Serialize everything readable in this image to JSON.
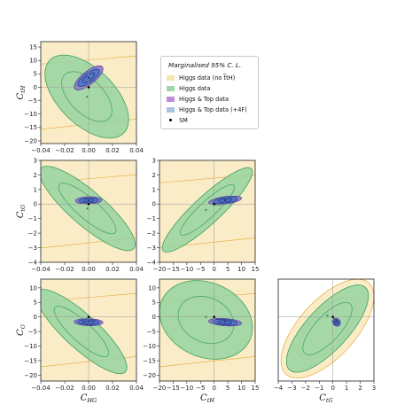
{
  "legend": {
    "title": "Marginalised 95% C. L.",
    "items": [
      {
        "label": "Higgs data (no t̅tH)",
        "color": "#f7e3b5"
      },
      {
        "label": "Higgs data",
        "color": "#9fd9a8"
      },
      {
        "label": "Higgs & Top data",
        "color": "#b98fd6"
      },
      {
        "label": "Higgs & Top data (+4F)",
        "color": "#a9c3e8"
      },
      {
        "label": "SM",
        "color": "#000000"
      }
    ]
  },
  "colors": {
    "no_tth_fill": "#fbecc8",
    "no_tth_edge": "#e8b24a",
    "higgs_fill": "#96d4a0",
    "higgs_edge": "#3aa35a",
    "top_fill": "#8a72cc",
    "top_edge": "#4a3c9a",
    "top4f_fill": "#4f73c8",
    "top4f_edge": "#1e3a8a"
  },
  "chart_data": [
    {
      "type": "contour",
      "panel": "C_tH vs C_HG",
      "xlabel": "C_HG",
      "ylabel": "C_tH",
      "xlim": [
        -0.04,
        0.04
      ],
      "ylim": [
        -21,
        17
      ],
      "xticks": [
        -0.04,
        -0.02,
        0.0,
        0.02,
        0.04
      ],
      "yticks": [
        -20,
        -15,
        -10,
        -5,
        0,
        5,
        10,
        15
      ],
      "xticklabels": [
        "−0.04",
        "−0.02",
        "0.00",
        "0.02",
        "0.04"
      ],
      "yticklabels": [
        "−20",
        "−15",
        "−10",
        "−5",
        "0",
        "5",
        "10",
        "15"
      ],
      "show_xticklabels": true,
      "sm": [
        0,
        0
      ],
      "best_fit": {
        "higgs": [
          -0.0015,
          -3.5
        ],
        "top": [
          0.0,
          3.5
        ]
      },
      "regions": {
        "no_tth": {
          "band": true
        },
        "higgs": {
          "center": [
            -0.0015,
            -3.5
          ],
          "rx": 0.035,
          "ry": 15.5,
          "corr": -0.55
        },
        "top": {
          "center": [
            0.0,
            3.5
          ],
          "rx": 0.012,
          "ry": 4.5,
          "corr": 0.75
        },
        "top4f": {
          "center": [
            0.0,
            3.5
          ],
          "rx": 0.009,
          "ry": 3.2,
          "corr": 0.75
        }
      }
    },
    {
      "type": "contour",
      "panel": "C_tG vs C_HG",
      "xlabel": "C_HG",
      "ylabel": "C_tG",
      "xlim": [
        -0.04,
        0.04
      ],
      "ylim": [
        -4,
        3
      ],
      "xticks": [
        -0.04,
        -0.02,
        0.0,
        0.02,
        0.04
      ],
      "yticks": [
        -4,
        -3,
        -2,
        -1,
        0,
        1,
        2,
        3
      ],
      "xticklabels": [
        "−0.04",
        "−0.02",
        "0.00",
        "0.02",
        "0.04"
      ],
      "yticklabels": [
        "−4",
        "−3",
        "−2",
        "−1",
        "0",
        "1",
        "2",
        "3"
      ],
      "show_xticklabels": true,
      "sm": [
        0,
        0
      ],
      "best_fit": {
        "higgs": [
          -0.001,
          -0.3
        ],
        "top": [
          0.0,
          0.25
        ]
      },
      "regions": {
        "no_tth": {
          "band": true
        },
        "higgs": {
          "center": [
            -0.001,
            -0.3
          ],
          "rx": 0.04,
          "ry": 2.9,
          "corr": -0.85
        },
        "top": {
          "center": [
            0.0,
            0.25
          ],
          "rx": 0.011,
          "ry": 0.25,
          "corr": 0.1
        },
        "top4f": {
          "center": [
            0.0,
            0.25
          ],
          "rx": 0.008,
          "ry": 0.18,
          "corr": 0.1
        }
      }
    },
    {
      "type": "contour",
      "panel": "C_tG vs C_tH",
      "xlabel": "C_tH",
      "ylabel": "C_tG",
      "xlim": [
        -20,
        15
      ],
      "ylim": [
        -4,
        3
      ],
      "xticks": [
        -20,
        -15,
        -10,
        -5,
        0,
        5,
        10,
        15
      ],
      "yticks": [
        -4,
        -3,
        -2,
        -1,
        0,
        1,
        2,
        3
      ],
      "xticklabels": [
        "−20",
        "−15",
        "−10",
        "−5",
        "0",
        "5",
        "10",
        "15"
      ],
      "yticklabels": [
        "−4",
        "−3",
        "−2",
        "−1",
        "0",
        "1",
        "2",
        "3"
      ],
      "show_xticklabels": true,
      "sm": [
        0,
        0
      ],
      "best_fit": {
        "higgs": [
          -3.0,
          -0.4
        ],
        "top": [
          4.0,
          0.25
        ]
      },
      "regions": {
        "no_tth": {
          "band": true
        },
        "higgs": {
          "center": [
            -2.5,
            -0.4
          ],
          "rx": 16.5,
          "ry": 2.9,
          "corr": 0.9
        },
        "top": {
          "center": [
            4.0,
            0.25
          ],
          "rx": 6.0,
          "ry": 0.3,
          "corr": 0.5
        },
        "top4f": {
          "center": [
            4.0,
            0.25
          ],
          "rx": 4.5,
          "ry": 0.22,
          "corr": 0.5
        }
      }
    },
    {
      "type": "contour",
      "panel": "C_G vs C_HG",
      "xlabel": "C_HG",
      "ylabel": "C_G",
      "xlim": [
        -0.04,
        0.04
      ],
      "ylim": [
        -22,
        13
      ],
      "xticks": [
        -0.04,
        -0.02,
        0.0,
        0.02,
        0.04
      ],
      "yticks": [
        -20,
        -15,
        -10,
        -5,
        0,
        5,
        10
      ],
      "xticklabels": [
        "−0.04",
        "−0.02",
        "0.00",
        "0.02",
        "0.04"
      ],
      "yticklabels": [
        "−20",
        "−15",
        "−10",
        "−5",
        "0",
        "5",
        "10"
      ],
      "show_xticklabels": true,
      "sm": [
        0,
        0
      ],
      "best_fit": {
        "higgs": [
          0.0,
          0.0
        ],
        "top": [
          0.0,
          -1.5
        ]
      },
      "regions": {
        "no_tth": {
          "band": true
        },
        "higgs": {
          "center": [
            -0.006,
            -5.0
          ],
          "rx": 0.038,
          "ry": 14.5,
          "corr": -0.85
        },
        "top": {
          "center": [
            0.0,
            -1.8
          ],
          "rx": 0.012,
          "ry": 1.2,
          "corr": -0.1
        },
        "top4f": {
          "center": [
            0.0,
            -1.8
          ],
          "rx": 0.009,
          "ry": 0.9,
          "corr": -0.1
        }
      }
    },
    {
      "type": "contour",
      "panel": "C_G vs C_tH",
      "xlabel": "C_tH",
      "ylabel": "C_G",
      "xlim": [
        -20,
        15
      ],
      "ylim": [
        -22,
        13
      ],
      "xticks": [
        -20,
        -15,
        -10,
        -5,
        0,
        5,
        10,
        15
      ],
      "yticks": [
        -20,
        -15,
        -10,
        -5,
        0,
        5,
        10
      ],
      "xticklabels": [
        "−20",
        "−15",
        "−10",
        "−5",
        "0",
        "5",
        "10",
        "15"
      ],
      "yticklabels": [
        "−20",
        "−15",
        "−10",
        "−5",
        "0",
        "5",
        "10"
      ],
      "show_xticklabels": true,
      "sm": [
        0,
        0
      ],
      "best_fit": {
        "higgs": [
          -3.0,
          0.0
        ],
        "top": [
          4.0,
          -1.5
        ]
      },
      "regions": {
        "no_tth": {
          "band": true
        },
        "higgs": {
          "center": [
            -3.0,
            -1.0
          ],
          "rx": 17.0,
          "ry": 13.5,
          "corr": -0.2
        },
        "top": {
          "center": [
            4.0,
            -1.8
          ],
          "rx": 6.0,
          "ry": 1.3,
          "corr": -0.3
        },
        "top4f": {
          "center": [
            4.0,
            -1.8
          ],
          "rx": 4.5,
          "ry": 1.0,
          "corr": -0.3
        }
      }
    },
    {
      "type": "contour",
      "panel": "C_G vs C_tG",
      "xlabel": "C_tG",
      "ylabel": "C_G",
      "xlim": [
        -4,
        3
      ],
      "ylim": [
        -22,
        13
      ],
      "xticks": [
        -4,
        -3,
        -2,
        -1,
        0,
        1,
        2,
        3
      ],
      "yticks": [],
      "xticklabels": [
        "−4",
        "−3",
        "−2",
        "−1",
        "0",
        "1",
        "2",
        "3"
      ],
      "yticklabels": [],
      "show_xticklabels": true,
      "sm": [
        0,
        0
      ],
      "best_fit": {
        "higgs": [
          -0.4,
          0.5
        ],
        "top": [
          0.25,
          -1.5
        ]
      },
      "regions": {
        "no_tth": {
          "center": [
            -0.4,
            -4.0
          ],
          "rx": 3.4,
          "ry": 17.0,
          "corr": 0.65
        },
        "higgs": {
          "center": [
            -0.4,
            -4.0
          ],
          "rx": 3.0,
          "ry": 15.0,
          "corr": 0.75
        },
        "top": {
          "center": [
            0.25,
            -1.8
          ],
          "rx": 0.3,
          "ry": 1.4,
          "corr": -0.2
        },
        "top4f": {
          "center": [
            0.25,
            -1.8
          ],
          "rx": 0.22,
          "ry": 1.0,
          "corr": -0.2
        }
      }
    }
  ]
}
